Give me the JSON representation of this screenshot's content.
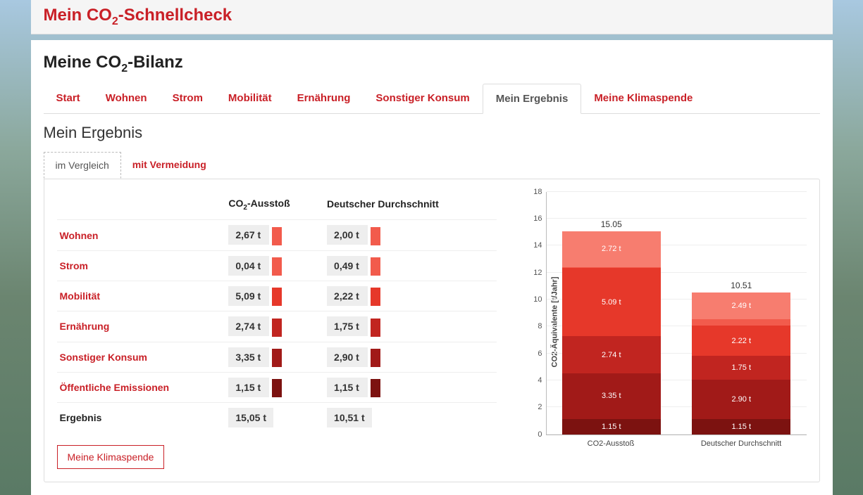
{
  "header": {
    "title_pre": "Mein CO",
    "title_sub": "2",
    "title_post": "-Schnellcheck"
  },
  "subtitle": {
    "pre": "Meine CO",
    "sub": "2",
    "post": "-Bilanz"
  },
  "main_tabs": [
    {
      "label": "Start",
      "active": false
    },
    {
      "label": "Wohnen",
      "active": false
    },
    {
      "label": "Strom",
      "active": false
    },
    {
      "label": "Mobilität",
      "active": false
    },
    {
      "label": "Ernährung",
      "active": false
    },
    {
      "label": "Sonstiger Konsum",
      "active": false
    },
    {
      "label": "Mein Ergebnis",
      "active": true
    },
    {
      "label": "Meine Klimaspende",
      "active": false
    }
  ],
  "section_title": "Mein Ergebnis",
  "sub_tabs": [
    {
      "label": "im Vergleich",
      "active": true
    },
    {
      "label": "mit Vermeidung",
      "active": false
    }
  ],
  "table": {
    "col1_header": "",
    "col2_pre": "CO",
    "col2_sub": "2",
    "col2_post": "-Ausstoß",
    "col3_header": "Deutscher Durchschnitt",
    "rows": [
      {
        "cat": "Wohnen",
        "mine": "2,67 t",
        "avg": "2,00 t",
        "color": "#f25b4c"
      },
      {
        "cat": "Strom",
        "mine": "0,04 t",
        "avg": "0,49 t",
        "color": "#f25b4c"
      },
      {
        "cat": "Mobilität",
        "mine": "5,09 t",
        "avg": "2,22 t",
        "color": "#e6382a"
      },
      {
        "cat": "Ernährung",
        "mine": "2,74 t",
        "avg": "1,75 t",
        "color": "#c12520"
      },
      {
        "cat": "Sonstiger Konsum",
        "mine": "3,35 t",
        "avg": "2,90 t",
        "color": "#a11a18"
      },
      {
        "cat": "Öffentliche Emissionen",
        "mine": "1,15 t",
        "avg": "1,15 t",
        "color": "#7c1210"
      }
    ],
    "total": {
      "cat": "Ergebnis",
      "mine": "15,05 t",
      "avg": "10,51 t"
    }
  },
  "klimaspende_button": "Meine Klimaspende",
  "chart": {
    "type": "stacked-bar",
    "ylabel": "CO2-Äquivalente [t/Jahr]",
    "ymax": 18,
    "ytick_step": 2,
    "yticks": [
      0,
      2,
      4,
      6,
      8,
      10,
      12,
      14,
      16,
      18
    ],
    "background_color": "#ffffff",
    "grid_color": "#eeeeee",
    "label_fontsize": 11,
    "bars": [
      {
        "label": "CO2-Ausstoß",
        "total": "15.05",
        "segments": [
          {
            "value": 1.15,
            "label": "1.15 t",
            "color": "#7c1210"
          },
          {
            "value": 3.35,
            "label": "3.35 t",
            "color": "#a11a18"
          },
          {
            "value": 2.74,
            "label": "2.74 t",
            "color": "#c12520"
          },
          {
            "value": 5.09,
            "label": "5.09 t",
            "color": "#e6382a"
          },
          {
            "value": 0.04,
            "label": "",
            "color": "#f25b4c"
          },
          {
            "value": 2.67,
            "label": "2.72 t",
            "color": "#f77d6f"
          }
        ]
      },
      {
        "label": "Deutscher Durchschnitt",
        "total": "10.51",
        "segments": [
          {
            "value": 1.15,
            "label": "1.15 t",
            "color": "#7c1210"
          },
          {
            "value": 2.9,
            "label": "2.90 t",
            "color": "#a11a18"
          },
          {
            "value": 1.75,
            "label": "1.75 t",
            "color": "#c12520"
          },
          {
            "value": 2.22,
            "label": "2.22 t",
            "color": "#e6382a"
          },
          {
            "value": 0.49,
            "label": "",
            "color": "#f25b4c"
          },
          {
            "value": 2.0,
            "label": "2.49 t",
            "color": "#f77d6f"
          }
        ]
      }
    ]
  }
}
